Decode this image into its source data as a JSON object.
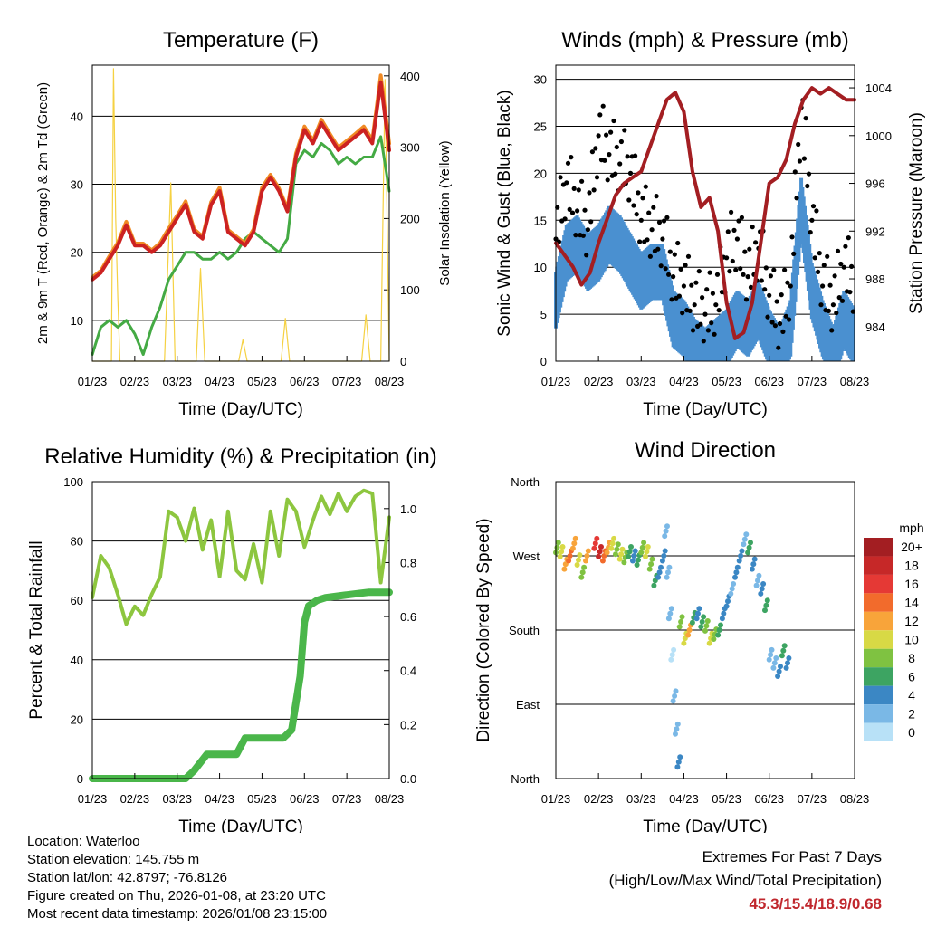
{
  "chart_data": [
    {
      "type": "line",
      "title": "Temperature (F)",
      "xlabel": "Time (Day/UTC)",
      "ylabel": "2m & 9m T (Red, Orange) & 2m Td (Green)",
      "y2label": "Solar Insolation (Yellow)",
      "xticks": [
        "01/23",
        "02/23",
        "03/23",
        "04/23",
        "05/23",
        "06/23",
        "07/23",
        "08/23"
      ],
      "ylim": [
        4,
        47.5
      ],
      "yticks": [
        10,
        20,
        30,
        40
      ],
      "y2lim": [
        0,
        415
      ],
      "y2ticks": [
        0,
        100,
        200,
        300,
        400
      ],
      "series": [
        {
          "name": "2m T",
          "color": "#cc2222",
          "axis": "left",
          "x": [
            0,
            0.2,
            0.4,
            0.6,
            0.8,
            1.0,
            1.2,
            1.4,
            1.6,
            1.8,
            2.0,
            2.2,
            2.4,
            2.6,
            2.8,
            3.0,
            3.2,
            3.4,
            3.6,
            3.8,
            4.0,
            4.2,
            4.4,
            4.6,
            4.8,
            5.0,
            5.2,
            5.4,
            5.6,
            5.8,
            6.0,
            6.2,
            6.4,
            6.6,
            6.8,
            7.0
          ],
          "values": [
            16,
            17,
            19,
            21,
            24,
            21,
            21,
            20,
            21,
            23,
            25,
            27,
            23,
            22,
            27,
            29,
            23,
            22,
            21,
            23,
            29,
            31,
            29,
            26,
            34,
            38,
            36,
            39,
            37,
            35,
            36,
            37,
            38,
            36,
            45,
            35
          ]
        },
        {
          "name": "9m T",
          "color": "#f08a24",
          "axis": "left",
          "x": [
            0,
            0.2,
            0.4,
            0.6,
            0.8,
            1.0,
            1.2,
            1.4,
            1.6,
            1.8,
            2.0,
            2.2,
            2.4,
            2.6,
            2.8,
            3.0,
            3.2,
            3.4,
            3.6,
            3.8,
            4.0,
            4.2,
            4.4,
            4.6,
            4.8,
            5.0,
            5.2,
            5.4,
            5.6,
            5.8,
            6.0,
            6.2,
            6.4,
            6.6,
            6.8,
            7.0
          ],
          "values": [
            16.3,
            17.3,
            19.4,
            21.4,
            24.5,
            21.3,
            21.3,
            20.3,
            21.4,
            23.5,
            25.4,
            27.5,
            23.4,
            22.3,
            27.4,
            29.5,
            23.3,
            22.3,
            21.3,
            23.4,
            29.5,
            31.4,
            29.4,
            26.4,
            34.5,
            38.5,
            36.4,
            39.5,
            37.4,
            35.4,
            36.4,
            37.4,
            38.5,
            36.5,
            46,
            36
          ]
        },
        {
          "name": "2m Td",
          "color": "#44aa44",
          "axis": "left",
          "x": [
            0,
            0.2,
            0.4,
            0.6,
            0.8,
            1.0,
            1.2,
            1.4,
            1.6,
            1.8,
            2.0,
            2.2,
            2.4,
            2.6,
            2.8,
            3.0,
            3.2,
            3.4,
            3.6,
            3.8,
            4.0,
            4.2,
            4.4,
            4.6,
            4.8,
            5.0,
            5.2,
            5.4,
            5.6,
            5.8,
            6.0,
            6.2,
            6.4,
            6.6,
            6.8,
            7.0
          ],
          "values": [
            5,
            9,
            10,
            9,
            10,
            8,
            5,
            9,
            12,
            16,
            18,
            20,
            20,
            19,
            19,
            20,
            19,
            20,
            22,
            23,
            22,
            21,
            20,
            22,
            33,
            35,
            34,
            36,
            35,
            33,
            34,
            33,
            34,
            34,
            37,
            29
          ]
        },
        {
          "name": "Solar Insolation",
          "color": "#f5d142",
          "axis": "right",
          "x": [
            0,
            0.45,
            0.5,
            0.55,
            0.6,
            0.65,
            0.7,
            1.0,
            1.5,
            1.6,
            1.7,
            1.85,
            1.95,
            2.45,
            2.55,
            2.65,
            3.0,
            3.45,
            3.55,
            3.65,
            4.0,
            4.45,
            4.55,
            4.65,
            5.0,
            5.45,
            5.55,
            5.65,
            6.0,
            6.35,
            6.45,
            6.55,
            6.8,
            6.9,
            7.0
          ],
          "values": [
            0,
            0,
            410,
            200,
            90,
            0,
            0,
            0,
            0,
            0,
            0,
            250,
            0,
            0,
            130,
            0,
            0,
            0,
            30,
            0,
            0,
            0,
            60,
            0,
            0,
            0,
            0,
            0,
            0,
            0,
            65,
            0,
            0,
            395,
            0
          ]
        }
      ]
    },
    {
      "type": "scatter",
      "title": "Winds (mph) & Pressure (mb)",
      "xlabel": "Time (Day/UTC)",
      "ylabel": "Sonic Wind & Gust (Blue, Black)",
      "y2label": "Station Pressure (Maroon)",
      "xticks": [
        "01/23",
        "02/23",
        "03/23",
        "04/23",
        "05/23",
        "06/23",
        "07/23",
        "08/23"
      ],
      "ylim": [
        0,
        31.5
      ],
      "yticks": [
        0,
        5,
        10,
        15,
        20,
        25,
        30
      ],
      "y2lim": [
        981.1,
        1005.9
      ],
      "y2ticks": [
        984,
        988,
        992,
        996,
        1000,
        1004
      ],
      "series": [
        {
          "name": "Sonic Wind",
          "color": "#4a90d0",
          "axis": "left",
          "x": [
            0,
            0.25,
            0.5,
            0.75,
            1.0,
            1.25,
            1.5,
            1.75,
            2.0,
            2.25,
            2.5,
            2.75,
            3.0,
            3.25,
            3.5,
            3.75,
            4.0,
            4.25,
            4.5,
            4.75,
            5.0,
            5.25,
            5.5,
            5.75,
            6.0,
            6.25,
            6.5,
            6.75,
            7.0
          ],
          "values": [
            7,
            12,
            13,
            11,
            12,
            14,
            13,
            11,
            9,
            10,
            10,
            5,
            4,
            2,
            1,
            2,
            3,
            5,
            4,
            6,
            3,
            1,
            4,
            17,
            8,
            4,
            1,
            5,
            3
          ]
        },
        {
          "name": "Gust",
          "color": "#000000",
          "axis": "left",
          "x": [
            0,
            0.25,
            0.5,
            0.75,
            1.0,
            1.25,
            1.5,
            1.75,
            2.0,
            2.25,
            2.5,
            2.75,
            3.0,
            3.25,
            3.5,
            3.75,
            4.0,
            4.25,
            4.5,
            4.75,
            5.0,
            5.25,
            5.5,
            5.75,
            6.0,
            6.25,
            6.5,
            6.75,
            7.0
          ],
          "values": [
            13,
            19,
            16,
            14,
            24,
            22,
            21,
            20,
            15,
            14,
            13,
            9,
            8,
            6,
            5,
            6,
            11,
            13,
            9,
            12,
            7,
            4,
            8,
            27,
            15,
            8,
            6,
            10,
            8
          ]
        },
        {
          "name": "Station Pressure",
          "color": "#a31e22",
          "axis": "right",
          "x": [
            0,
            0.2,
            0.4,
            0.6,
            0.8,
            1.0,
            1.2,
            1.4,
            1.6,
            1.8,
            2.0,
            2.2,
            2.4,
            2.6,
            2.8,
            3.0,
            3.2,
            3.4,
            3.6,
            3.8,
            4.0,
            4.2,
            4.4,
            4.6,
            4.8,
            5.0,
            5.2,
            5.4,
            5.6,
            5.8,
            6.0,
            6.2,
            6.4,
            6.6,
            6.8,
            7.0
          ],
          "values": [
            991,
            990,
            989,
            987.5,
            988.5,
            991,
            993,
            995,
            996,
            996.5,
            997,
            999,
            1001,
            1003,
            1003.6,
            1002,
            997,
            994,
            994.8,
            992,
            986,
            983,
            983.5,
            986,
            991,
            996,
            996.5,
            998,
            1001,
            1003,
            1004,
            1003.5,
            1004,
            1003.5,
            1003,
            1003
          ]
        }
      ]
    },
    {
      "type": "line",
      "title": "Relative Humidity (%) & Precipitation (in)",
      "xlabel": "Time (Day/UTC)",
      "ylabel": "Percent & Total Rainfall",
      "xticks": [
        "01/23",
        "02/23",
        "03/23",
        "04/23",
        "05/23",
        "06/23",
        "07/23",
        "08/23"
      ],
      "ylim": [
        0,
        100
      ],
      "yticks": [
        0,
        20,
        40,
        60,
        80,
        100
      ],
      "y2lim": [
        0,
        1.1
      ],
      "y2ticks": [
        "0.0",
        "0.2",
        "0.4",
        "0.6",
        "0.8",
        "1.0"
      ],
      "series": [
        {
          "name": "Relative Humidity",
          "color": "#8dc63f",
          "axis": "left",
          "x": [
            0,
            0.2,
            0.4,
            0.6,
            0.8,
            1.0,
            1.2,
            1.4,
            1.6,
            1.8,
            2.0,
            2.2,
            2.4,
            2.6,
            2.8,
            3.0,
            3.2,
            3.4,
            3.6,
            3.8,
            4.0,
            4.2,
            4.4,
            4.6,
            4.8,
            5.0,
            5.2,
            5.4,
            5.6,
            5.8,
            6.0,
            6.2,
            6.4,
            6.6,
            6.8,
            7.0
          ],
          "values": [
            61,
            75,
            71,
            62,
            52,
            58,
            55,
            62,
            68,
            90,
            88,
            80,
            91,
            77,
            87,
            68,
            90,
            70,
            67,
            79,
            66,
            90,
            75,
            94,
            90,
            78,
            87,
            95,
            89,
            96,
            90,
            95,
            97,
            96,
            66,
            88
          ]
        },
        {
          "name": "Total Precipitation",
          "color": "#4ab64a",
          "axis": "right",
          "x": [
            0,
            1.0,
            2.2,
            2.4,
            2.7,
            3.4,
            3.6,
            4.5,
            4.7,
            4.9,
            5.0,
            5.1,
            5.2,
            5.3,
            5.5,
            6.0,
            6.5,
            7.0
          ],
          "values": [
            0,
            0,
            0,
            0.03,
            0.09,
            0.09,
            0.15,
            0.15,
            0.18,
            0.38,
            0.58,
            0.64,
            0.65,
            0.66,
            0.67,
            0.68,
            0.69,
            0.69
          ]
        }
      ]
    },
    {
      "type": "scatter",
      "title": "Wind Direction",
      "xlabel": "Time (Day/UTC)",
      "ylabel": "Direction (Colored By Speed)",
      "xticks": [
        "01/23",
        "02/23",
        "03/23",
        "04/23",
        "05/23",
        "06/23",
        "07/23",
        "08/23"
      ],
      "yticks": [
        "North",
        "East",
        "South",
        "West",
        "North"
      ],
      "ylim": [
        0,
        360
      ],
      "colorbar_title": "mph",
      "colorbar_labels": [
        "20+",
        "18",
        "16",
        "14",
        "12",
        "10",
        "8",
        "6",
        "4",
        "2",
        "0"
      ],
      "colorbar_colors": [
        "#a31e22",
        "#c62828",
        "#e53935",
        "#f26b2c",
        "#f8a43a",
        "#d8d945",
        "#7fc241",
        "#3da462",
        "#3b87c4",
        "#7ab8e6",
        "#b8e1f7"
      ],
      "points_dir": [
        280,
        275,
        260,
        270,
        285,
        265,
        250,
        270,
        285,
        275,
        270,
        280,
        285,
        278,
        272,
        268,
        275,
        270,
        265,
        280,
        275,
        260,
        240,
        250,
        270,
        300,
        250,
        200,
        150,
        100,
        60,
        20,
        190,
        170,
        180,
        195,
        200,
        190,
        185,
        170,
        175,
        180,
        200,
        215,
        230,
        250,
        270,
        290,
        280,
        260,
        240,
        230,
        210,
        150,
        140,
        130,
        155,
        140
      ],
      "points_spd": [
        8,
        10,
        12,
        14,
        12,
        10,
        8,
        12,
        16,
        18,
        14,
        12,
        10,
        8,
        10,
        8,
        6,
        4,
        6,
        8,
        10,
        8,
        6,
        4,
        3,
        2,
        1,
        2,
        0,
        1,
        2,
        3,
        8,
        10,
        12,
        6,
        4,
        6,
        8,
        10,
        8,
        6,
        4,
        3,
        2,
        3,
        4,
        2,
        6,
        4,
        2,
        3,
        5,
        1,
        2,
        3,
        6,
        4
      ],
      "points_x": [
        0,
        0.1,
        0.2,
        0.3,
        0.4,
        0.5,
        0.6,
        0.7,
        0.9,
        1.0,
        1.1,
        1.2,
        1.3,
        1.4,
        1.5,
        1.6,
        1.7,
        1.8,
        1.9,
        2.0,
        2.1,
        2.2,
        2.3,
        2.4,
        2.5,
        2.55,
        2.6,
        2.65,
        2.7,
        2.75,
        2.8,
        2.85,
        2.9,
        3.0,
        3.1,
        3.2,
        3.3,
        3.4,
        3.5,
        3.6,
        3.7,
        3.8,
        3.9,
        4.0,
        4.1,
        4.2,
        4.3,
        4.4,
        4.5,
        4.6,
        4.7,
        4.8,
        4.9,
        5.0,
        5.1,
        5.2,
        5.3,
        5.4
      ]
    }
  ],
  "footer": {
    "location": "Location: Waterloo",
    "elevation": "Station elevation: 145.755 m",
    "latlon": "Station lat/lon: 42.8797; -76.8126",
    "created": "Figure created on Thu, 2026-01-08, at 23:20 UTC",
    "recent": "Most recent data timestamp: 2026/01/08 23:15:00",
    "extremes_title": "Extremes For Past 7 Days",
    "extremes_subtitle": "(High/Low/Max Wind/Total Precipitation)",
    "extremes_values": "45.3/15.4/18.9/0.68"
  }
}
